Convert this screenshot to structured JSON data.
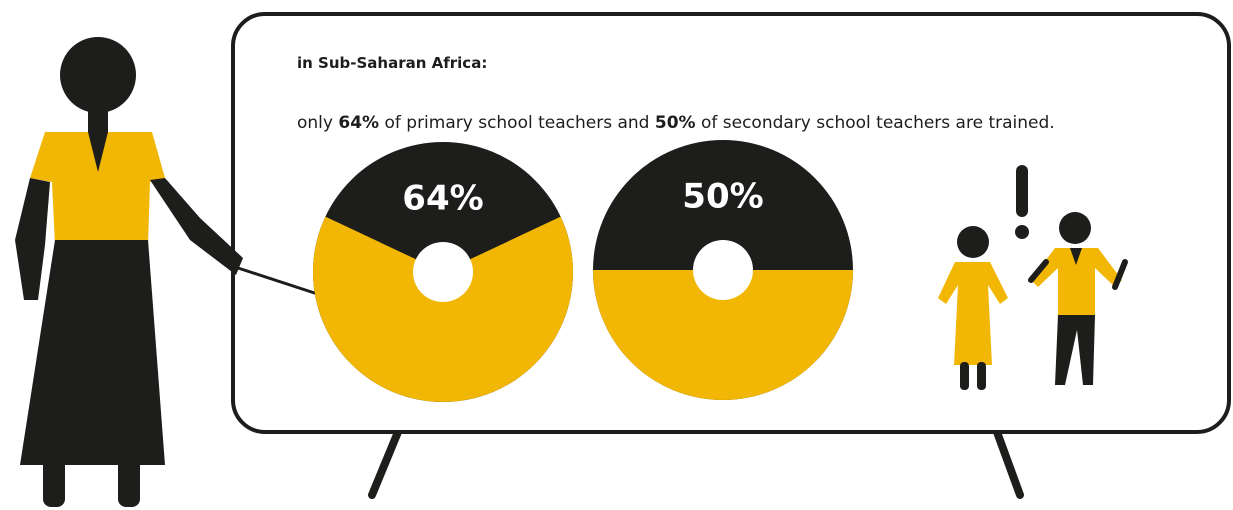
{
  "header": {
    "title": "in Sub-Saharan Africa:",
    "text": [
      "only ",
      "64%",
      " of primary school teachers and ",
      "50%",
      " of secondary school teachers are trained."
    ]
  },
  "chart_data": [
    {
      "type": "pie",
      "values": [
        64
      ],
      "value_labels": [
        "64%"
      ],
      "color": "#f2b705",
      "track_color": "#1d1d1b"
    },
    {
      "type": "pie",
      "values": [
        50
      ],
      "value_labels": [
        "50%"
      ],
      "color": "#f2b705",
      "track_color": "#1d1d1b"
    }
  ]
}
